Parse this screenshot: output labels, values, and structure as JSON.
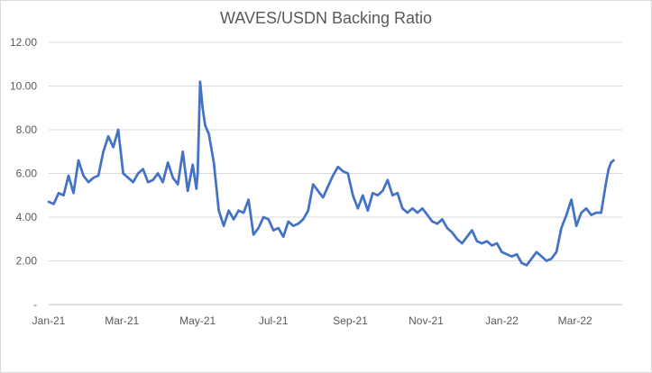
{
  "chart_data": {
    "type": "line",
    "title": "WAVES/USDN Backing Ratio",
    "xlabel": "",
    "ylabel": "",
    "ylim": [
      0,
      12
    ],
    "y_ticks": [
      {
        "value": 12,
        "label": "12.00"
      },
      {
        "value": 10,
        "label": "10.00"
      },
      {
        "value": 8,
        "label": "8.00"
      },
      {
        "value": 6,
        "label": "6.00"
      },
      {
        "value": 4,
        "label": "4.00"
      },
      {
        "value": 2,
        "label": "2.00"
      },
      {
        "value": 0,
        "label": "-"
      }
    ],
    "x_ticks": [
      "Jan-21",
      "Mar-21",
      "May-21",
      "Jul-21",
      "Sep-21",
      "Nov-21",
      "Jan-22",
      "Mar-22"
    ],
    "grid": "horizontal",
    "legend": "none",
    "line_color": "#4472c4",
    "series": [
      {
        "x": [
          "2021-01-01",
          "2021-01-05",
          "2021-01-09",
          "2021-01-13",
          "2021-01-17",
          "2021-01-21",
          "2021-01-25",
          "2021-01-29",
          "2021-02-02",
          "2021-02-06",
          "2021-02-10",
          "2021-02-14",
          "2021-02-18",
          "2021-02-22",
          "2021-02-26",
          "2021-03-02",
          "2021-03-06",
          "2021-03-10",
          "2021-03-14",
          "2021-03-18",
          "2021-03-22",
          "2021-03-26",
          "2021-03-30",
          "2021-04-03",
          "2021-04-07",
          "2021-04-11",
          "2021-04-15",
          "2021-04-19",
          "2021-04-23",
          "2021-04-27",
          "2021-04-30",
          "2021-05-01",
          "2021-05-03",
          "2021-05-05",
          "2021-05-07",
          "2021-05-10",
          "2021-05-14",
          "2021-05-18",
          "2021-05-22",
          "2021-05-26",
          "2021-05-30",
          "2021-06-03",
          "2021-06-07",
          "2021-06-11",
          "2021-06-15",
          "2021-06-19",
          "2021-06-23",
          "2021-06-27",
          "2021-07-01",
          "2021-07-05",
          "2021-07-09",
          "2021-07-13",
          "2021-07-17",
          "2021-07-21",
          "2021-07-25",
          "2021-07-29",
          "2021-08-02",
          "2021-08-06",
          "2021-08-10",
          "2021-08-14",
          "2021-08-18",
          "2021-08-22",
          "2021-08-26",
          "2021-08-30",
          "2021-09-03",
          "2021-09-07",
          "2021-09-11",
          "2021-09-15",
          "2021-09-19",
          "2021-09-23",
          "2021-09-27",
          "2021-10-01",
          "2021-10-05",
          "2021-10-09",
          "2021-10-13",
          "2021-10-17",
          "2021-10-21",
          "2021-10-25",
          "2021-10-29",
          "2021-11-02",
          "2021-11-06",
          "2021-11-10",
          "2021-11-14",
          "2021-11-18",
          "2021-11-22",
          "2021-11-26",
          "2021-11-30",
          "2021-12-04",
          "2021-12-08",
          "2021-12-12",
          "2021-12-16",
          "2021-12-20",
          "2021-12-24",
          "2021-12-28",
          "2022-01-01",
          "2022-01-05",
          "2022-01-09",
          "2022-01-13",
          "2022-01-17",
          "2022-01-21",
          "2022-01-25",
          "2022-01-29",
          "2022-02-02",
          "2022-02-06",
          "2022-02-10",
          "2022-02-14",
          "2022-02-18",
          "2022-02-22",
          "2022-02-26",
          "2022-03-02",
          "2022-03-06",
          "2022-03-10",
          "2022-03-14",
          "2022-03-18",
          "2022-03-22",
          "2022-03-26",
          "2022-03-28",
          "2022-03-30",
          "2022-04-01"
        ],
        "values": [
          4.7,
          4.6,
          5.1,
          5.0,
          5.9,
          5.1,
          6.6,
          5.9,
          5.6,
          5.8,
          5.9,
          7.0,
          7.7,
          7.2,
          8.0,
          6.0,
          5.8,
          5.6,
          6.0,
          6.2,
          5.6,
          5.7,
          6.0,
          5.6,
          6.5,
          5.8,
          5.5,
          7.0,
          5.2,
          6.4,
          5.3,
          6.0,
          10.2,
          9.0,
          8.2,
          7.8,
          6.5,
          4.3,
          3.6,
          4.3,
          3.9,
          4.3,
          4.2,
          4.8,
          3.2,
          3.5,
          4.0,
          3.9,
          3.4,
          3.5,
          3.1,
          3.8,
          3.6,
          3.7,
          3.9,
          4.3,
          5.5,
          5.2,
          4.9,
          5.4,
          5.9,
          6.3,
          6.1,
          6.0,
          5.0,
          4.4,
          5.0,
          4.3,
          5.1,
          5.0,
          5.2,
          5.7,
          5.0,
          5.1,
          4.4,
          4.2,
          4.4,
          4.2,
          4.4,
          4.1,
          3.8,
          3.7,
          3.9,
          3.5,
          3.3,
          3.0,
          2.8,
          3.1,
          3.4,
          2.9,
          2.8,
          2.9,
          2.7,
          2.8,
          2.4,
          2.3,
          2.2,
          2.3,
          1.9,
          1.8,
          2.1,
          2.4,
          2.2,
          2.0,
          2.1,
          2.4,
          3.5,
          4.1,
          4.8,
          3.6,
          4.2,
          4.4,
          4.1,
          4.2,
          4.2,
          5.6,
          6.2,
          6.5,
          6.6
        ]
      }
    ]
  }
}
